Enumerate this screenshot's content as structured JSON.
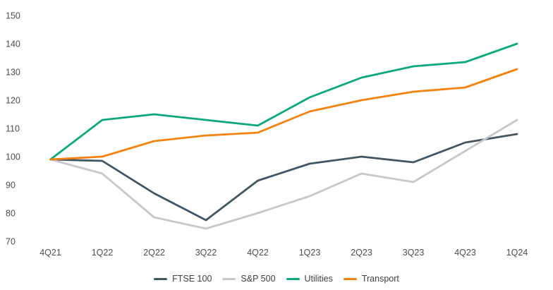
{
  "styles": {
    "background": "#ffffff",
    "axis_label_color": "#4d4d4d",
    "legend_label_color": "#404040"
  },
  "chart_data": {
    "type": "line",
    "title": "",
    "xlabel": "",
    "ylabel": "",
    "grid": false,
    "legend_position": "bottom",
    "ylim": [
      70,
      150
    ],
    "yticks": [
      70,
      80,
      90,
      100,
      110,
      120,
      130,
      140,
      150
    ],
    "categories": [
      "4Q21",
      "1Q22",
      "2Q22",
      "3Q22",
      "4Q22",
      "1Q23",
      "2Q23",
      "3Q23",
      "4Q23",
      "1Q24"
    ],
    "series": [
      {
        "name": "FTSE 100",
        "color": "#425563",
        "values": [
          99,
          98.5,
          87,
          77.5,
          91.5,
          97.5,
          100,
          98,
          105,
          108
        ]
      },
      {
        "name": "S&P 500",
        "color": "#c7c8cc",
        "values": [
          99,
          94,
          78.5,
          74.5,
          80,
          86,
          94,
          91,
          102,
          113
        ]
      },
      {
        "name": "Utilities",
        "color": "#0ba87e",
        "values": [
          99,
          113,
          115,
          113,
          111,
          121,
          128,
          132,
          133.5,
          140
        ]
      },
      {
        "name": "Transport",
        "color": "#f5820d",
        "values": [
          99,
          100,
          105.5,
          107.5,
          108.5,
          116,
          120,
          123,
          124.5,
          131
        ]
      }
    ]
  }
}
